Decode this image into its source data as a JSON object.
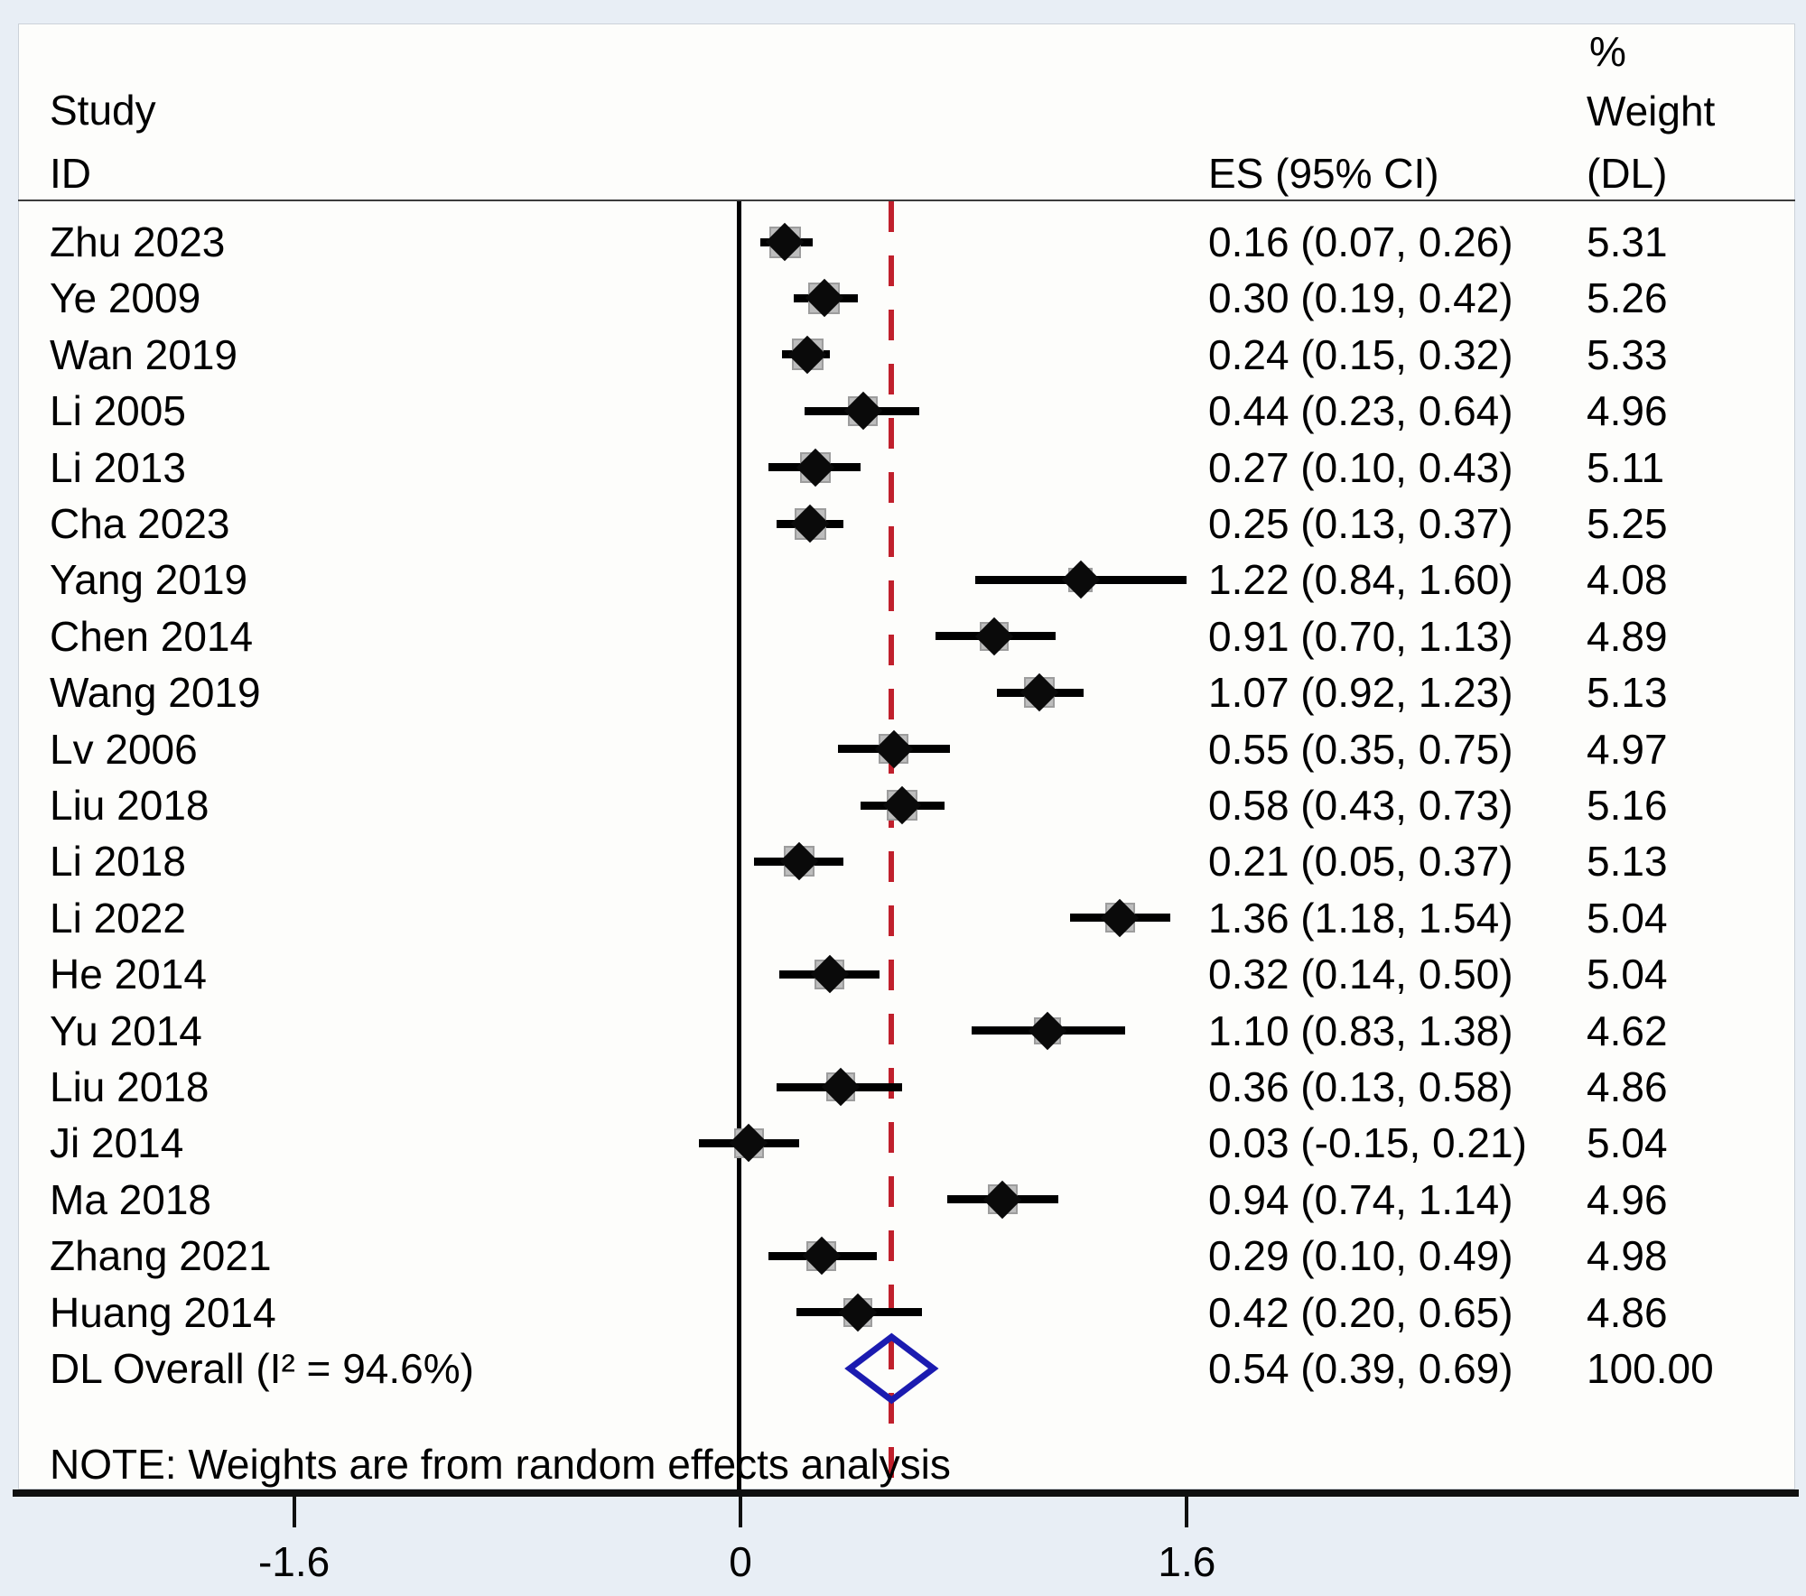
{
  "header": {
    "study": "Study",
    "id": "ID",
    "es_ci": "ES (95% CI)",
    "pct": "%",
    "weight": "Weight",
    "dl": "(DL)"
  },
  "note": "NOTE: Weights are from random effects analysis",
  "colors": {
    "background": "#e8eef5",
    "panel": "#fdfdfb",
    "ref_line_red": "#c0202c",
    "overall_diamond_blue": "#1b1bb0",
    "weight_box_fill": "#bdbdbd",
    "weight_box_border": "#9d9d9d",
    "marker_black": "#0a0a0a"
  },
  "chart_data": {
    "type": "forest",
    "x_tick_labels": [
      "-1.6",
      "0",
      "1.6"
    ],
    "x_tick_values": [
      -1.6,
      0,
      1.6
    ],
    "zero_line_value": 0,
    "overall_ref_line_value": 0.54,
    "heterogeneity_label": "DL Overall (I² = 94.6%)",
    "studies": [
      {
        "id": "Zhu 2023",
        "es": 0.16,
        "lo": 0.07,
        "hi": 0.26,
        "es_label": "0.16 (0.07, 0.26)",
        "weight": 5.31,
        "weight_label": "5.31"
      },
      {
        "id": "Ye 2009",
        "es": 0.3,
        "lo": 0.19,
        "hi": 0.42,
        "es_label": "0.30 (0.19, 0.42)",
        "weight": 5.26,
        "weight_label": "5.26"
      },
      {
        "id": "Wan 2019",
        "es": 0.24,
        "lo": 0.15,
        "hi": 0.32,
        "es_label": "0.24 (0.15, 0.32)",
        "weight": 5.33,
        "weight_label": "5.33"
      },
      {
        "id": "Li 2005",
        "es": 0.44,
        "lo": 0.23,
        "hi": 0.64,
        "es_label": "0.44 (0.23, 0.64)",
        "weight": 4.96,
        "weight_label": "4.96"
      },
      {
        "id": "Li 2013",
        "es": 0.27,
        "lo": 0.1,
        "hi": 0.43,
        "es_label": "0.27 (0.10, 0.43)",
        "weight": 5.11,
        "weight_label": "5.11"
      },
      {
        "id": "Cha 2023",
        "es": 0.25,
        "lo": 0.13,
        "hi": 0.37,
        "es_label": "0.25 (0.13, 0.37)",
        "weight": 5.25,
        "weight_label": "5.25"
      },
      {
        "id": "Yang 2019",
        "es": 1.22,
        "lo": 0.84,
        "hi": 1.6,
        "es_label": "1.22 (0.84, 1.60)",
        "weight": 4.08,
        "weight_label": "4.08"
      },
      {
        "id": "Chen 2014",
        "es": 0.91,
        "lo": 0.7,
        "hi": 1.13,
        "es_label": "0.91 (0.70, 1.13)",
        "weight": 4.89,
        "weight_label": "4.89"
      },
      {
        "id": "Wang 2019",
        "es": 1.07,
        "lo": 0.92,
        "hi": 1.23,
        "es_label": "1.07 (0.92, 1.23)",
        "weight": 5.13,
        "weight_label": "5.13"
      },
      {
        "id": "Lv 2006",
        "es": 0.55,
        "lo": 0.35,
        "hi": 0.75,
        "es_label": "0.55 (0.35, 0.75)",
        "weight": 4.97,
        "weight_label": "4.97"
      },
      {
        "id": "Liu 2018",
        "es": 0.58,
        "lo": 0.43,
        "hi": 0.73,
        "es_label": "0.58 (0.43, 0.73)",
        "weight": 5.16,
        "weight_label": "5.16"
      },
      {
        "id": "Li 2018",
        "es": 0.21,
        "lo": 0.05,
        "hi": 0.37,
        "es_label": "0.21 (0.05, 0.37)",
        "weight": 5.13,
        "weight_label": "5.13"
      },
      {
        "id": "Li 2022",
        "es": 1.36,
        "lo": 1.18,
        "hi": 1.54,
        "es_label": "1.36 (1.18, 1.54)",
        "weight": 5.04,
        "weight_label": "5.04"
      },
      {
        "id": "He 2014",
        "es": 0.32,
        "lo": 0.14,
        "hi": 0.5,
        "es_label": "0.32 (0.14, 0.50)",
        "weight": 5.04,
        "weight_label": "5.04"
      },
      {
        "id": "Yu 2014",
        "es": 1.1,
        "lo": 0.83,
        "hi": 1.38,
        "es_label": "1.10 (0.83, 1.38)",
        "weight": 4.62,
        "weight_label": "4.62"
      },
      {
        "id": "Liu 2018",
        "es": 0.36,
        "lo": 0.13,
        "hi": 0.58,
        "es_label": "0.36 (0.13, 0.58)",
        "weight": 4.86,
        "weight_label": "4.86"
      },
      {
        "id": "Ji 2014",
        "es": 0.03,
        "lo": -0.15,
        "hi": 0.21,
        "es_label": "0.03 (-0.15, 0.21)",
        "weight": 5.04,
        "weight_label": "5.04"
      },
      {
        "id": "Ma 2018",
        "es": 0.94,
        "lo": 0.74,
        "hi": 1.14,
        "es_label": "0.94 (0.74, 1.14)",
        "weight": 4.96,
        "weight_label": "4.96"
      },
      {
        "id": "Zhang 2021",
        "es": 0.29,
        "lo": 0.1,
        "hi": 0.49,
        "es_label": "0.29 (0.10, 0.49)",
        "weight": 4.98,
        "weight_label": "4.98"
      },
      {
        "id": "Huang 2014",
        "es": 0.42,
        "lo": 0.2,
        "hi": 0.65,
        "es_label": "0.42 (0.20, 0.65)",
        "weight": 4.86,
        "weight_label": "4.86"
      }
    ],
    "overall": {
      "id": "DL Overall (I² = 94.6%)",
      "es": 0.54,
      "lo": 0.39,
      "hi": 0.69,
      "es_label": "0.54 (0.39, 0.69)",
      "weight_label": "100.00"
    }
  }
}
